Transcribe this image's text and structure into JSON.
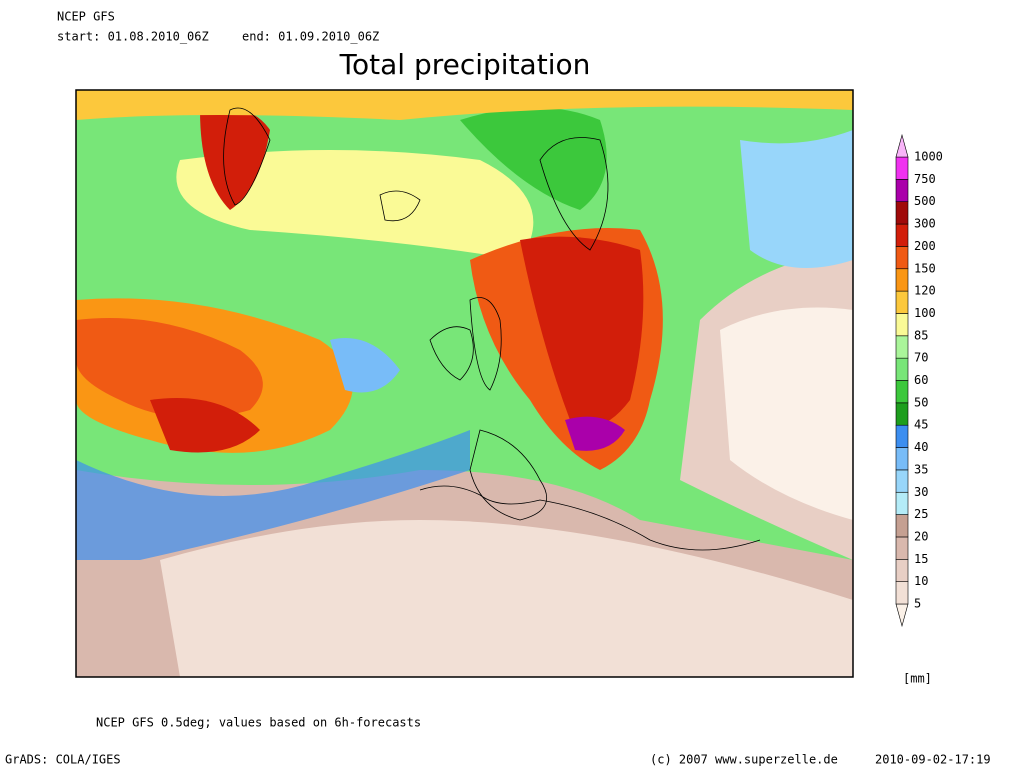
{
  "header": {
    "model": "NCEP GFS",
    "start": "start: 01.08.2010_06Z",
    "end": "end: 01.09.2010_06Z"
  },
  "title": "Total precipitation",
  "legend": {
    "levels": [
      5,
      10,
      15,
      20,
      25,
      30,
      35,
      40,
      45,
      50,
      60,
      70,
      85,
      100,
      120,
      150,
      200,
      300,
      500,
      750,
      1000
    ],
    "colors": [
      "#fbf1e8",
      "#f2e0d6",
      "#e8cfc5",
      "#d9b8ad",
      "#c5a092",
      "#b4ecf8",
      "#98d6fa",
      "#78bcf8",
      "#3c8ef0",
      "#1e9e1e",
      "#3cc83c",
      "#78e678",
      "#aaf59a",
      "#fafa96",
      "#fcc83c",
      "#fa9614",
      "#f05a14",
      "#d21e0a",
      "#a00a0a",
      "#aa00aa",
      "#f032f0",
      "#f8b4f8"
    ],
    "unit": "[mm]"
  },
  "footer": {
    "note": "NCEP GFS 0.5deg; values based on 6h-forecasts",
    "software": "GrADS: COLA/IGES",
    "copyright": "(c) 2007 www.superzelle.de",
    "timestamp": "2010-09-02-17:19"
  }
}
